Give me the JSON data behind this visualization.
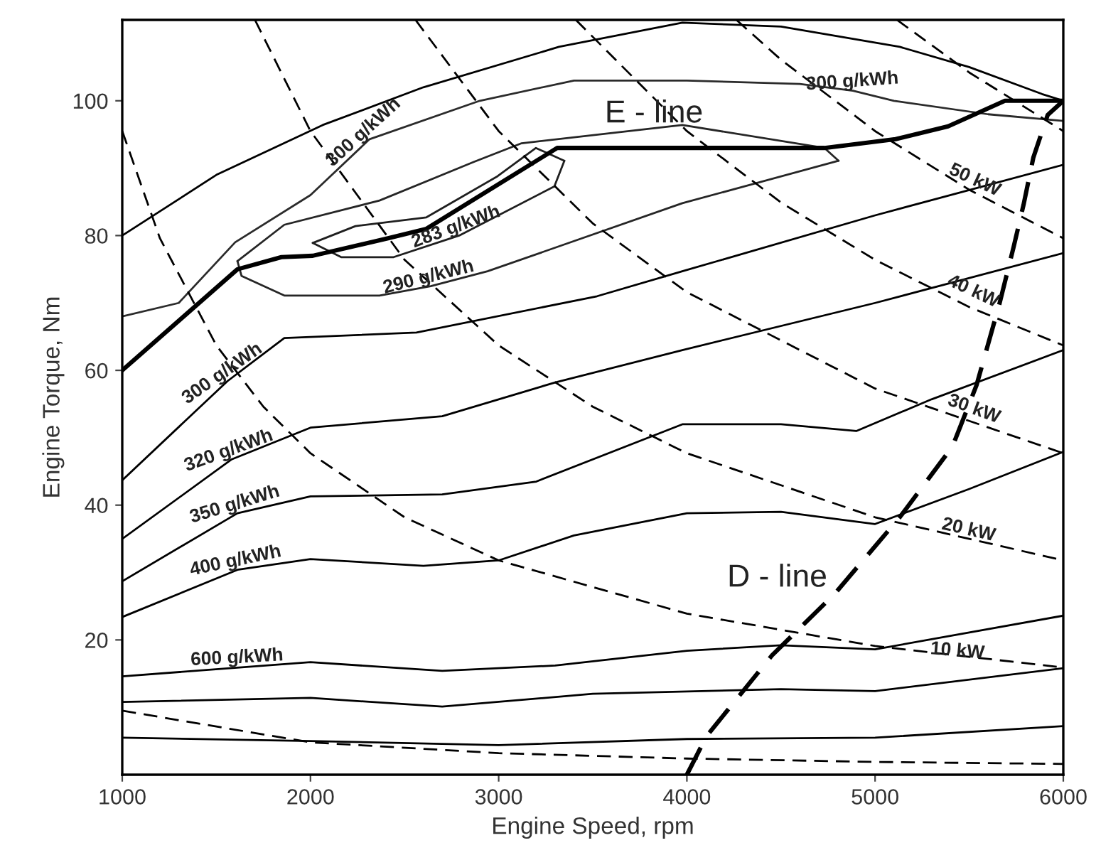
{
  "chart_data": {
    "type": "line",
    "xlabel": "Engine Speed, rpm",
    "ylabel": "Engine Torque, Nm",
    "xlim": [
      1000,
      6000
    ],
    "ylim": [
      0,
      112
    ],
    "xticks": [
      1000,
      2000,
      3000,
      4000,
      5000,
      6000
    ],
    "yticks": [
      20,
      40,
      60,
      80,
      100
    ],
    "grid": false,
    "marker": "none",
    "series": [
      {
        "color": "#000000",
        "line_style": "solid",
        "x": [
          1000,
          2000,
          3000,
          4000,
          5000,
          6000
        ],
        "values": [
          5.5,
          5,
          4.4,
          5.3,
          5.5,
          7.2
        ]
      },
      {
        "color": "#000000",
        "line_style": "solid",
        "x": [
          1000,
          2000,
          2700,
          3500,
          4500,
          5000,
          6000
        ],
        "values": [
          10.8,
          11.4,
          10.1,
          12,
          12.7,
          12.4,
          15.8
        ]
      },
      {
        "color": "#000000",
        "line_style": "solid",
        "x": [
          1000,
          2000,
          2700,
          3300,
          4000,
          4500,
          5000,
          6000
        ],
        "values": [
          14.6,
          16.7,
          15.4,
          16.2,
          18.4,
          19.2,
          18.6,
          23.6
        ]
      },
      {
        "color": "#000000",
        "line_style": "solid",
        "x": [
          1000,
          1612,
          2000,
          2600,
          3000,
          3400,
          4000,
          4500,
          5000,
          5500,
          6000
        ],
        "values": [
          23.4,
          30.4,
          32,
          31,
          31.8,
          35.5,
          38.8,
          39,
          37.2,
          42.4,
          47.9
        ]
      },
      {
        "color": "#000000",
        "line_style": "solid",
        "x": [
          1000,
          1612,
          2000,
          2700,
          3200,
          3976,
          4500,
          4900,
          5300,
          6000
        ],
        "values": [
          28.7,
          38.8,
          41.3,
          41.6,
          43.5,
          52,
          52,
          51,
          55.7,
          63
        ]
      },
      {
        "color": "#000000",
        "line_style": "solid",
        "x": [
          1000,
          1582,
          2000,
          2700,
          3300,
          3976,
          5000,
          6000
        ],
        "values": [
          35,
          46.8,
          51.5,
          53.2,
          58.2,
          63,
          70,
          77.4
        ]
      },
      {
        "color": "#000000",
        "line_style": "solid",
        "x": [
          1000,
          1559,
          1861,
          2563,
          3523,
          3976,
          5000,
          6000
        ],
        "values": [
          43.7,
          58.4,
          64.8,
          65.6,
          71,
          74.7,
          83,
          90.5
        ]
      },
      {
        "color": "#262626",
        "line_style": "solid",
        "x": [
          1612,
          1861,
          2367,
          2866,
          3122,
          3976,
          4731,
          4806
        ],
        "values": [
          76.2,
          81.6,
          85.2,
          90.9,
          93.7,
          96.4,
          93,
          91.1
        ]
      },
      {
        "color": "#262626",
        "line_style": "solid",
        "x": [
          1612,
          1634,
          1861,
          2367,
          2639,
          2941,
          3976,
          4806
        ],
        "values": [
          76.2,
          74,
          71.1,
          71.1,
          72.5,
          74.7,
          84.8,
          91.1
        ]
      },
      {
        "color": "#1f1f1f",
        "line_style": "solid",
        "x": [
          2012,
          2239,
          2616,
          2994,
          3198,
          3349
        ],
        "values": [
          78.9,
          81.4,
          82.7,
          88.8,
          93,
          91.1
        ]
      },
      {
        "color": "#1f1f1f",
        "line_style": "solid",
        "x": [
          2012,
          2163,
          2442,
          2790,
          3296,
          3349
        ],
        "values": [
          78.9,
          76.8,
          76.8,
          80,
          87.3,
          91.1
        ]
      },
      {
        "color": "#2b2b2b",
        "line_style": "solid",
        "x": [
          1000,
          1300,
          1600,
          2000,
          2314,
          2900,
          3400,
          4000,
          4600,
          4882,
          5100,
          5600,
          6000
        ],
        "values": [
          68,
          70,
          79,
          86,
          94.3,
          100,
          103,
          103,
          102.5,
          101.5,
          100,
          98,
          97
        ]
      },
      {
        "color": "#000000",
        "line_style": "solid",
        "x": [
          1000,
          1500,
          2065,
          2600,
          3320,
          3976,
          4500,
          5131,
          5500,
          5887,
          6000
        ],
        "values": [
          80,
          89,
          96.4,
          102,
          108,
          111.6,
          111,
          108,
          105,
          101,
          100
        ]
      },
      {
        "color": "#000000",
        "line_style": "solid",
        "x": [
          1000,
          1612,
          1846,
          2012,
          2412,
          2616,
          3311,
          4731,
          5109,
          5388,
          5690,
          6000
        ],
        "values": [
          60,
          75,
          76.8,
          77,
          79.6,
          81,
          93,
          93,
          94.3,
          96.2,
          100,
          100
        ]
      },
      {
        "color": "#000000",
        "line_style": "dashed",
        "x": [
          4000,
          4104,
          4452,
          4784,
          5131,
          5411,
          5539,
          5660,
          5736,
          5789,
          5841,
          5917,
          6000
        ],
        "values": [
          0,
          5.7,
          17.7,
          26.8,
          38.2,
          48.7,
          57.8,
          69.8,
          78.3,
          84.6,
          91.6,
          97.9,
          100
        ]
      },
      {
        "color": "#000000",
        "line_style": "dashed",
        "x": [
          1000,
          2000,
          3000,
          4000,
          5000,
          6000
        ],
        "values": [
          9.5,
          4.8,
          3.2,
          2.4,
          1.9,
          1.6
        ]
      },
      {
        "color": "#000000",
        "line_style": "dashed",
        "x": [
          1000,
          1200,
          1500,
          1750,
          2000,
          2500,
          3000,
          4000,
          5000,
          6000
        ],
        "values": [
          95.5,
          79.6,
          63.7,
          54.6,
          47.7,
          38.2,
          31.8,
          23.9,
          19.1,
          15.9
        ]
      },
      {
        "color": "#000000",
        "line_style": "dashed",
        "x": [
          1705,
          2000,
          2500,
          3000,
          3500,
          4000,
          5000,
          6000
        ],
        "values": [
          112,
          95.5,
          76.4,
          63.7,
          54.6,
          47.7,
          38.2,
          31.8
        ]
      },
      {
        "color": "#000000",
        "line_style": "dashed",
        "x": [
          2558,
          3000,
          3500,
          4000,
          5000,
          6000
        ],
        "values": [
          112,
          95.5,
          81.8,
          71.6,
          57.3,
          47.7
        ]
      },
      {
        "color": "#000000",
        "line_style": "dashed",
        "x": [
          3410,
          4000,
          4500,
          5000,
          5500,
          6000
        ],
        "values": [
          112,
          95.5,
          84.9,
          76.4,
          69.4,
          63.7
        ]
      },
      {
        "color": "#000000",
        "line_style": "dashed",
        "x": [
          4263,
          4500,
          5000,
          5500,
          6000
        ],
        "values": [
          112,
          106.1,
          95.5,
          86.8,
          79.6
        ]
      },
      {
        "color": "#000000",
        "line_style": "dashed",
        "x": [
          5116,
          5500,
          6000
        ],
        "values": [
          112,
          104.2,
          95.5
        ]
      }
    ],
    "annotations": [
      "E - line",
      "D - line",
      {
        "text": "300 g/kWh",
        "x": 2314,
        "y": 94.3
      },
      {
        "text": "283 g/kWh",
        "x": 2790,
        "y": 80
      },
      {
        "text": "290 g/kWh",
        "x": 2639,
        "y": 72.5
      },
      {
        "text": "300 g/kWh",
        "x": 1559,
        "y": 58.4
      },
      {
        "text": "320 g/kWh",
        "x": 1582,
        "y": 46.8
      },
      {
        "text": "350 g/kWh",
        "x": 1612,
        "y": 38.8
      },
      {
        "text": "400 g/kWh",
        "x": 1612,
        "y": 30.4
      },
      {
        "text": "600 g/kWh",
        "x": 1612,
        "y": 16
      },
      {
        "text": "300 g/kWh",
        "x": 4882,
        "y": 101.5
      },
      {
        "text": "50 kW",
        "x": 5509,
        "y": 87
      },
      {
        "text": "40 kW",
        "x": 5501,
        "y": 70.5
      },
      {
        "text": "30 kW",
        "x": 5509,
        "y": 53
      },
      {
        "text": "20 kW",
        "x": 5486,
        "y": 35
      },
      {
        "text": "10 kW",
        "x": 5433,
        "y": 17
      }
    ]
  }
}
